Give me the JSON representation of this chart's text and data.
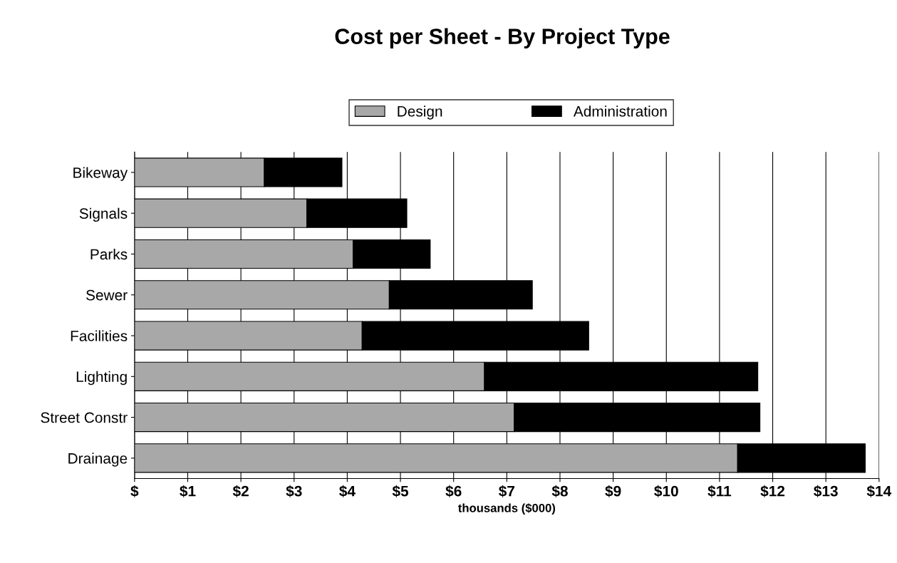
{
  "chart_data": {
    "type": "bar",
    "orientation": "horizontal",
    "stacked": true,
    "title": "Cost per Sheet - By Project Type",
    "xlabel": "thousands ($000)",
    "categories": [
      "Bikeway",
      "Signals",
      "Parks",
      "Sewer",
      "Facilities",
      "Lighting",
      "Street Constr",
      "Drainage"
    ],
    "series": [
      {
        "name": "Design",
        "color": "#a8a8a8",
        "values": [
          2.44,
          3.24,
          4.11,
          4.79,
          4.28,
          6.58,
          7.14,
          11.34
        ]
      },
      {
        "name": "Administration",
        "color": "#000000",
        "values": [
          1.46,
          1.88,
          1.45,
          2.69,
          4.26,
          5.14,
          4.62,
          2.4
        ]
      }
    ],
    "xlim": [
      0,
      14
    ],
    "xticks": [
      {
        "value": 0,
        "label": "$"
      },
      {
        "value": 1,
        "label": "$1"
      },
      {
        "value": 2,
        "label": "$2"
      },
      {
        "value": 3,
        "label": "$3"
      },
      {
        "value": 4,
        "label": "$4"
      },
      {
        "value": 5,
        "label": "$5"
      },
      {
        "value": 6,
        "label": "$6"
      },
      {
        "value": 7,
        "label": "$7"
      },
      {
        "value": 8,
        "label": "$8"
      },
      {
        "value": 9,
        "label": "$9"
      },
      {
        "value": 10,
        "label": "$10"
      },
      {
        "value": 11,
        "label": "$11"
      },
      {
        "value": 12,
        "label": "$12"
      },
      {
        "value": 13,
        "label": "$13"
      },
      {
        "value": 14,
        "label": "$14"
      }
    ],
    "grid": "x",
    "legend": "top"
  }
}
